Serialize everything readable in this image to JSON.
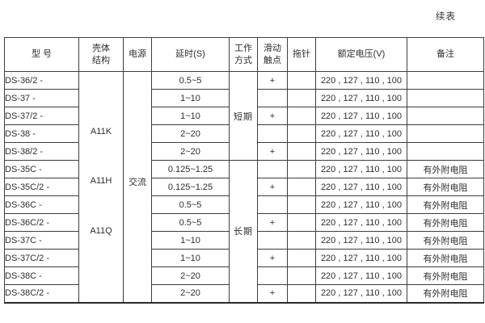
{
  "page": {
    "continued_label": "续表"
  },
  "table": {
    "headers": {
      "model": "型 号",
      "shell": "壳体\n结构",
      "power": "电源",
      "delay": "延时(S)",
      "work_mode": "工作\n方式",
      "sliding_contact": "滑动\n触点",
      "drag_pin": "拖针",
      "rated_voltage": "额定电压(V)",
      "remarks": "备注"
    },
    "shell_labels": [
      "A11K",
      "A11H",
      "A11Q"
    ],
    "power_value": "交流",
    "work_modes": [
      {
        "label": "短期",
        "row_span": 5
      },
      {
        "label": "长期",
        "row_span": 8
      }
    ],
    "rows": [
      {
        "model": "DS-36/2 -",
        "delay": "0.5~5",
        "contact": "+",
        "pin": "",
        "voltage": "220 , 127 , 110 , 100",
        "remark": ""
      },
      {
        "model": "DS-37  -",
        "delay": "1~10",
        "contact": "",
        "pin": "",
        "voltage": "220 , 127 , 110 , 100",
        "remark": ""
      },
      {
        "model": "DS-37/2 -",
        "delay": "1~10",
        "contact": "+",
        "pin": "",
        "voltage": "220 , 127 , 110 , 100",
        "remark": ""
      },
      {
        "model": "DS-38  -",
        "delay": "2~20",
        "contact": "",
        "pin": "",
        "voltage": "220 , 127 , 110 , 100",
        "remark": ""
      },
      {
        "model": "DS-38/2 -",
        "delay": "2~20",
        "contact": "+",
        "pin": "",
        "voltage": "220 , 127 , 110 , 100",
        "remark": ""
      },
      {
        "model": "DS-35C  -",
        "delay": "0.125~1.25",
        "contact": "",
        "pin": "",
        "voltage": "220 , 127 , 110 , 100",
        "remark": "有外附电阻"
      },
      {
        "model": "DS-35C/2 -",
        "delay": "0.125~1.25",
        "contact": "+",
        "pin": "",
        "voltage": "220 , 127 , 110 , 100",
        "remark": "有外附电阻"
      },
      {
        "model": "DS-36C  -",
        "delay": "0.5~5",
        "contact": "",
        "pin": "",
        "voltage": "220 , 127 , 110 , 100",
        "remark": "有外附电阻"
      },
      {
        "model": "DS-36C/2 -",
        "delay": "0.5~5",
        "contact": "+",
        "pin": "",
        "voltage": "220 , 127 , 110 , 100",
        "remark": "有外附电阻"
      },
      {
        "model": "DS-37C  -",
        "delay": "1~10",
        "contact": "",
        "pin": "",
        "voltage": "220 , 127 , 110 , 100",
        "remark": "有外附电阻"
      },
      {
        "model": "DS-37C/2 -",
        "delay": "1~10",
        "contact": "+",
        "pin": "",
        "voltage": "220 , 127 , 110 , 100",
        "remark": "有外附电阻"
      },
      {
        "model": "DS-38C  -",
        "delay": "2~20",
        "contact": "",
        "pin": "",
        "voltage": "220 , 127 , 110 , 100",
        "remark": "有外附电阻"
      },
      {
        "model": "DS-38C/2 -",
        "delay": "2~20",
        "contact": "+",
        "pin": "",
        "voltage": "220 , 127 , 110 , 100",
        "remark": "有外附电阻"
      }
    ]
  }
}
